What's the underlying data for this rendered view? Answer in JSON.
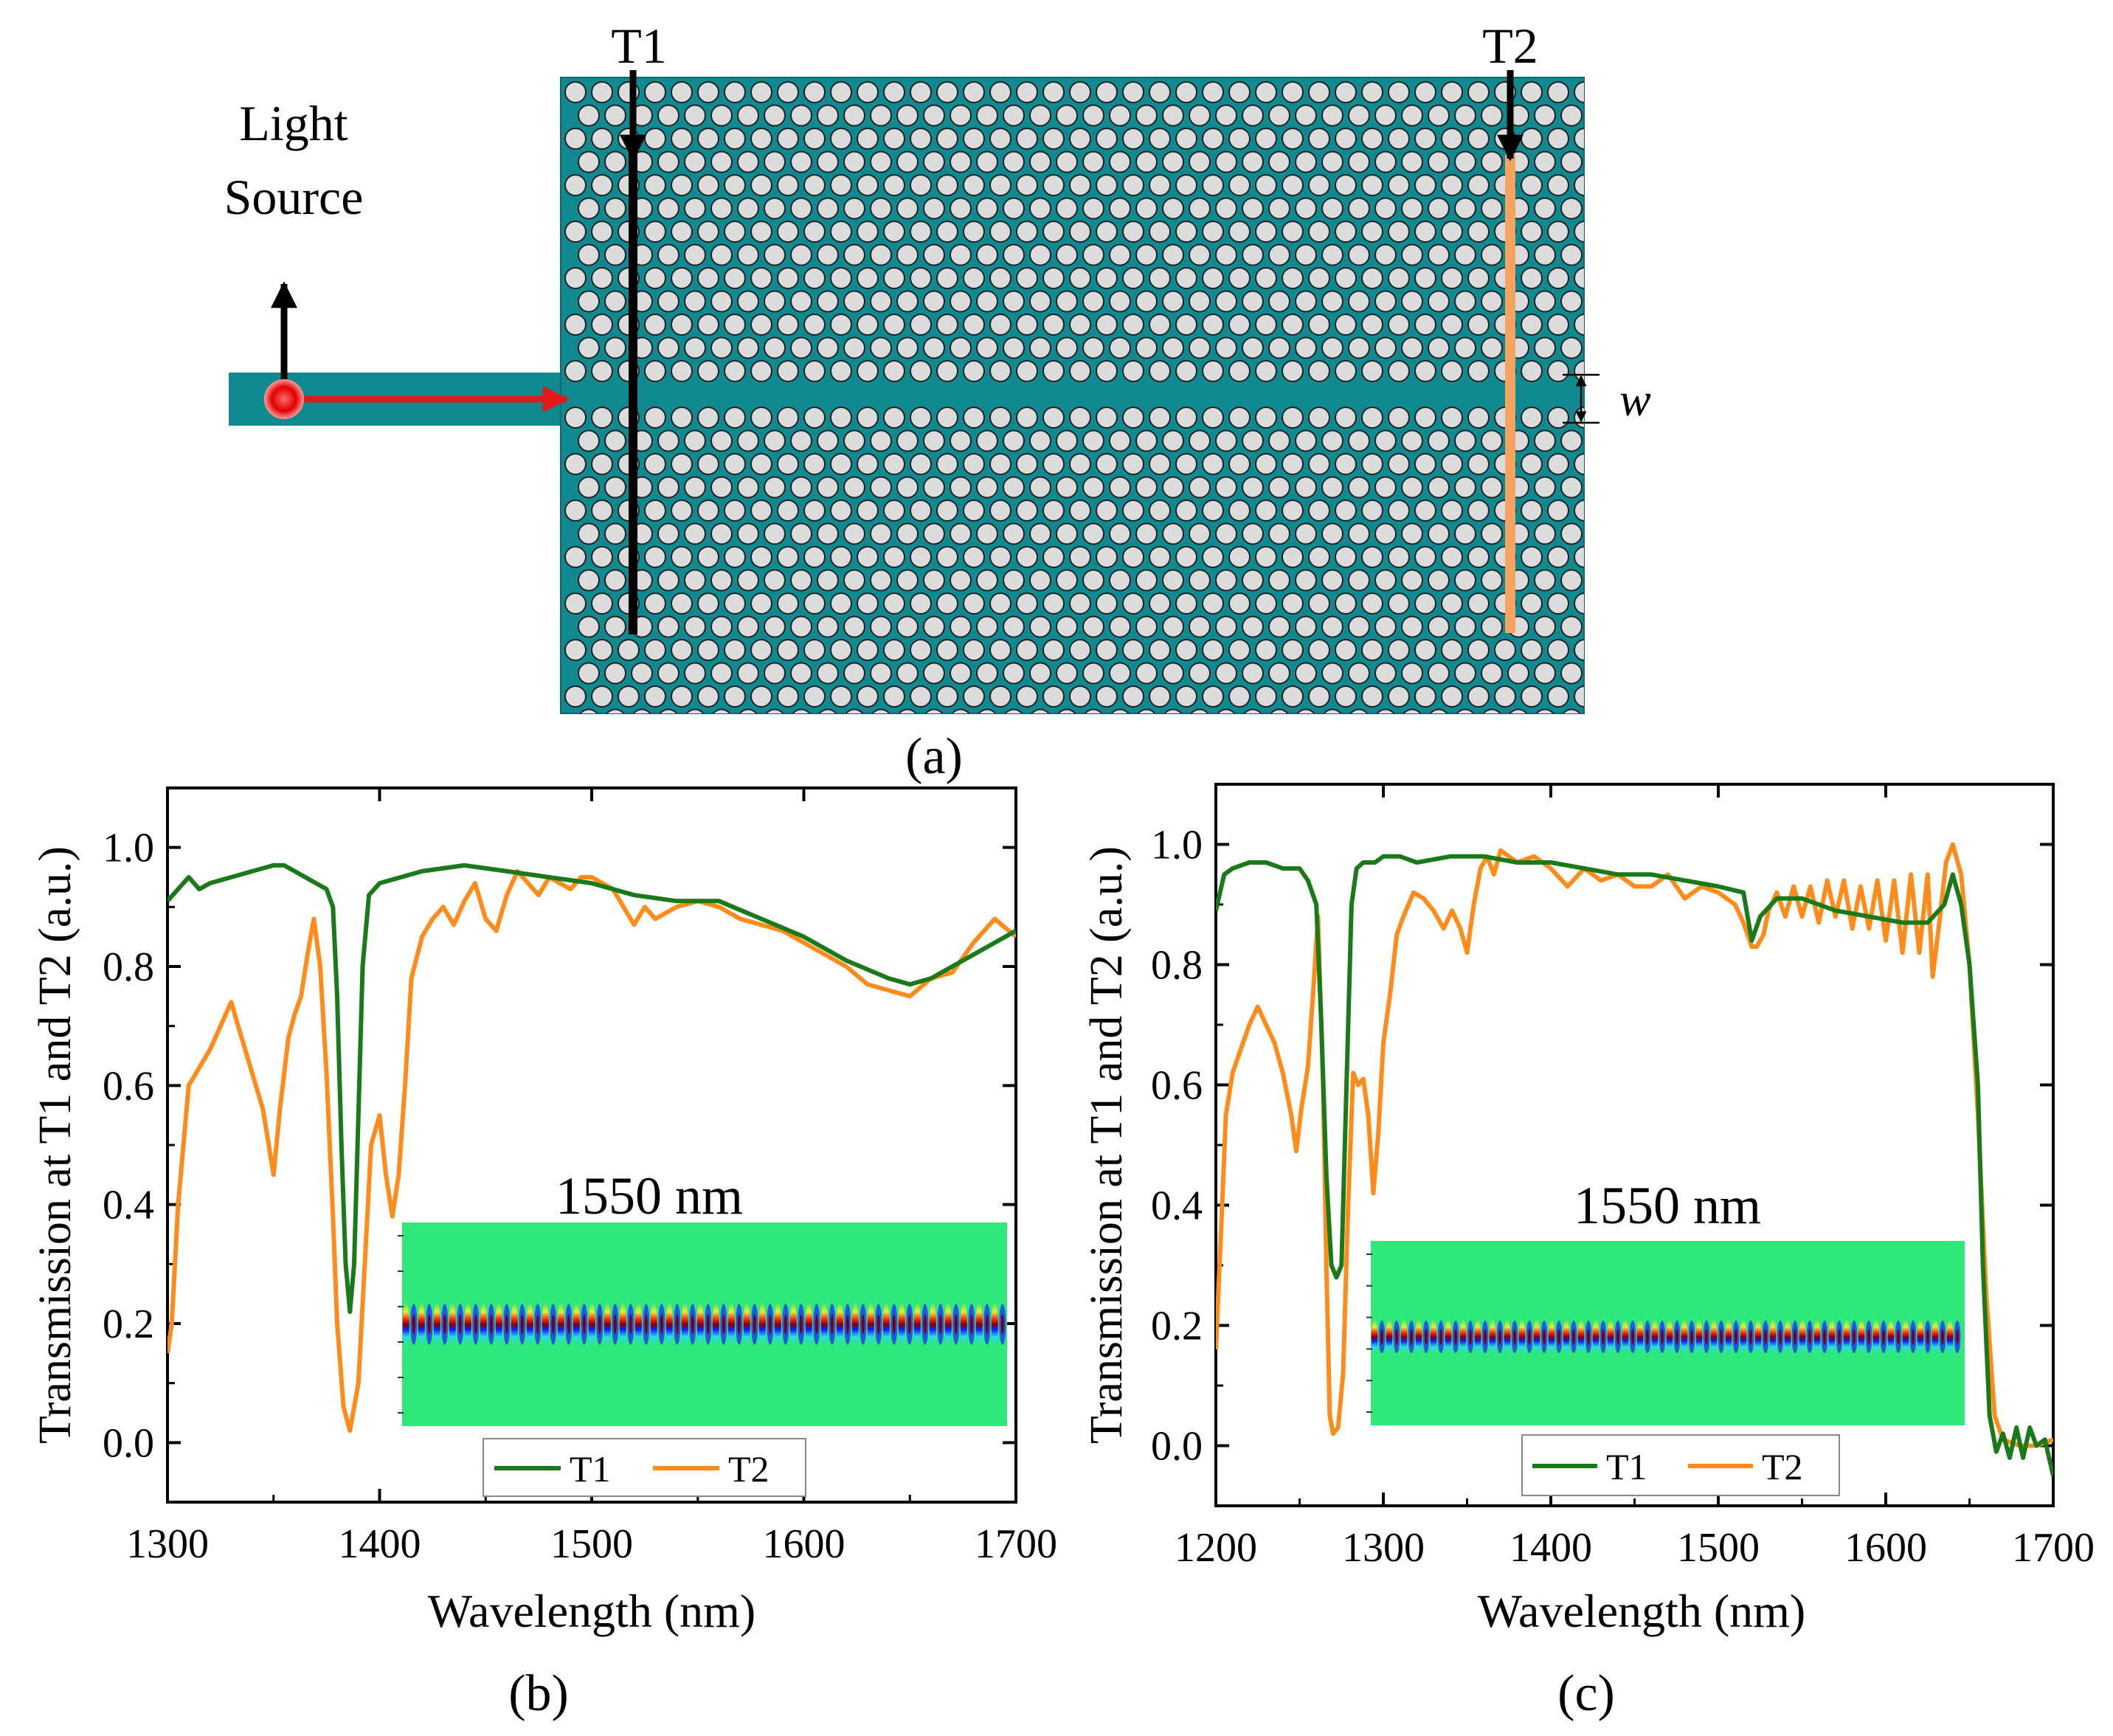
{
  "panel_a": {
    "label": "(a)",
    "source_label_line1": "Light",
    "source_label_line2": "Source",
    "monitor_1": "T1",
    "monitor_2": "T2",
    "width_symbol": "w",
    "colors": {
      "slab": "#108a90",
      "hole": "#dcdcdc",
      "hole_edge": "#222222",
      "source": "#ee1111",
      "arrow_red": "#e31a1a",
      "t1_line": "#000000",
      "t2_line": "#f4a460"
    }
  },
  "chart_data": [
    {
      "panel": "(b)",
      "type": "line",
      "xlabel": "Wavelength (nm)",
      "ylabel": "Transmission at T1 and T2 (a.u.)",
      "xlim": [
        1300,
        1700
      ],
      "ylim": [
        -0.1,
        1.1
      ],
      "xticks": [
        "1300",
        "1400",
        "1500",
        "1600",
        "1700"
      ],
      "yticks": [
        "0.0",
        "0.2",
        "0.4",
        "0.6",
        "0.8",
        "1.0"
      ],
      "inset_title": "1550 nm",
      "legend": [
        "T1",
        "T2"
      ],
      "colors": {
        "T1": "#1a7a1a",
        "T2": "#ff8c1a"
      },
      "series": [
        {
          "name": "T1",
          "x": [
            1300,
            1305,
            1310,
            1315,
            1320,
            1330,
            1340,
            1350,
            1355,
            1360,
            1365,
            1370,
            1375,
            1378,
            1380,
            1382,
            1384,
            1386,
            1388,
            1390,
            1392,
            1395,
            1400,
            1410,
            1420,
            1440,
            1460,
            1480,
            1500,
            1520,
            1540,
            1560,
            1580,
            1600,
            1620,
            1640,
            1650,
            1660,
            1680,
            1700
          ],
          "values": [
            0.91,
            0.93,
            0.95,
            0.93,
            0.94,
            0.95,
            0.96,
            0.97,
            0.97,
            0.96,
            0.95,
            0.94,
            0.93,
            0.9,
            0.75,
            0.5,
            0.3,
            0.22,
            0.3,
            0.55,
            0.8,
            0.92,
            0.94,
            0.95,
            0.96,
            0.97,
            0.96,
            0.95,
            0.94,
            0.92,
            0.91,
            0.91,
            0.88,
            0.85,
            0.81,
            0.78,
            0.77,
            0.78,
            0.82,
            0.86
          ]
        },
        {
          "name": "T2",
          "x": [
            1300,
            1302,
            1305,
            1310,
            1315,
            1320,
            1325,
            1330,
            1335,
            1340,
            1345,
            1350,
            1353,
            1357,
            1360,
            1363,
            1366,
            1369,
            1372,
            1375,
            1378,
            1380,
            1383,
            1386,
            1390,
            1393,
            1396,
            1400,
            1403,
            1406,
            1409,
            1412,
            1415,
            1420,
            1425,
            1430,
            1435,
            1440,
            1445,
            1450,
            1455,
            1460,
            1465,
            1470,
            1475,
            1480,
            1485,
            1490,
            1495,
            1500,
            1510,
            1520,
            1525,
            1530,
            1540,
            1550,
            1560,
            1570,
            1580,
            1590,
            1600,
            1610,
            1620,
            1630,
            1640,
            1650,
            1660,
            1670,
            1680,
            1690,
            1700
          ],
          "values": [
            0.15,
            0.2,
            0.4,
            0.6,
            0.63,
            0.66,
            0.7,
            0.74,
            0.68,
            0.62,
            0.56,
            0.45,
            0.56,
            0.68,
            0.72,
            0.75,
            0.82,
            0.88,
            0.8,
            0.62,
            0.38,
            0.2,
            0.06,
            0.02,
            0.1,
            0.3,
            0.5,
            0.55,
            0.45,
            0.38,
            0.45,
            0.6,
            0.78,
            0.85,
            0.88,
            0.9,
            0.87,
            0.91,
            0.94,
            0.88,
            0.86,
            0.92,
            0.96,
            0.94,
            0.92,
            0.95,
            0.94,
            0.93,
            0.95,
            0.95,
            0.93,
            0.87,
            0.9,
            0.88,
            0.9,
            0.91,
            0.9,
            0.88,
            0.87,
            0.86,
            0.84,
            0.82,
            0.8,
            0.77,
            0.76,
            0.75,
            0.78,
            0.79,
            0.84,
            0.88,
            0.85
          ]
        }
      ]
    },
    {
      "panel": "(c)",
      "type": "line",
      "xlabel": "Wavelength (nm)",
      "ylabel": "Transmission at T1 and T2 (a.u.)",
      "xlim": [
        1200,
        1700
      ],
      "ylim": [
        -0.1,
        1.1
      ],
      "xticks": [
        "1200",
        "1300",
        "1400",
        "1500",
        "1600",
        "1700"
      ],
      "yticks": [
        "0.0",
        "0.2",
        "0.4",
        "0.6",
        "0.8",
        "1.0"
      ],
      "inset_title": "1550 nm",
      "legend": [
        "T1",
        "T2"
      ],
      "colors": {
        "T1": "#1a7a1a",
        "T2": "#ff8c1a"
      },
      "series": [
        {
          "name": "T1",
          "x": [
            1200,
            1205,
            1210,
            1220,
            1230,
            1240,
            1250,
            1255,
            1260,
            1263,
            1266,
            1269,
            1272,
            1275,
            1278,
            1281,
            1284,
            1288,
            1295,
            1300,
            1310,
            1320,
            1340,
            1360,
            1380,
            1400,
            1420,
            1440,
            1460,
            1480,
            1500,
            1515,
            1520,
            1525,
            1535,
            1550,
            1570,
            1590,
            1610,
            1625,
            1635,
            1640,
            1645,
            1650,
            1655,
            1658,
            1662,
            1666,
            1670,
            1674,
            1678,
            1682,
            1686,
            1690,
            1695,
            1700
          ],
          "values": [
            0.89,
            0.95,
            0.96,
            0.97,
            0.97,
            0.96,
            0.96,
            0.94,
            0.9,
            0.7,
            0.45,
            0.3,
            0.28,
            0.3,
            0.6,
            0.9,
            0.96,
            0.97,
            0.97,
            0.98,
            0.98,
            0.97,
            0.98,
            0.98,
            0.97,
            0.97,
            0.96,
            0.95,
            0.95,
            0.94,
            0.93,
            0.92,
            0.84,
            0.88,
            0.91,
            0.91,
            0.89,
            0.88,
            0.87,
            0.87,
            0.9,
            0.95,
            0.9,
            0.8,
            0.6,
            0.3,
            0.05,
            -0.01,
            0.02,
            -0.02,
            0.03,
            -0.02,
            0.03,
            0.0,
            0.01,
            -0.05
          ]
        },
        {
          "name": "T2",
          "x": [
            1200,
            1203,
            1206,
            1210,
            1215,
            1220,
            1225,
            1230,
            1235,
            1240,
            1245,
            1248,
            1251,
            1255,
            1258,
            1261,
            1264,
            1266,
            1268,
            1270,
            1273,
            1276,
            1279,
            1282,
            1285,
            1288,
            1291,
            1294,
            1297,
            1300,
            1304,
            1308,
            1312,
            1318,
            1324,
            1330,
            1336,
            1341,
            1346,
            1350,
            1354,
            1358,
            1362,
            1366,
            1370,
            1380,
            1390,
            1400,
            1410,
            1420,
            1430,
            1440,
            1450,
            1460,
            1470,
            1480,
            1490,
            1500,
            1510,
            1515,
            1520,
            1523,
            1527,
            1530,
            1535,
            1540,
            1545,
            1550,
            1555,
            1560,
            1565,
            1570,
            1575,
            1580,
            1585,
            1590,
            1595,
            1600,
            1605,
            1610,
            1615,
            1620,
            1625,
            1628,
            1632,
            1636,
            1640,
            1645,
            1650,
            1655,
            1660,
            1665,
            1670,
            1680,
            1690,
            1700
          ],
          "values": [
            0.16,
            0.35,
            0.55,
            0.62,
            0.66,
            0.7,
            0.73,
            0.7,
            0.67,
            0.62,
            0.55,
            0.49,
            0.56,
            0.63,
            0.75,
            0.88,
            0.6,
            0.3,
            0.05,
            0.02,
            0.03,
            0.12,
            0.4,
            0.62,
            0.6,
            0.61,
            0.55,
            0.42,
            0.52,
            0.67,
            0.75,
            0.85,
            0.88,
            0.92,
            0.91,
            0.89,
            0.86,
            0.89,
            0.86,
            0.82,
            0.9,
            0.96,
            0.98,
            0.95,
            0.99,
            0.97,
            0.98,
            0.96,
            0.93,
            0.96,
            0.94,
            0.95,
            0.93,
            0.93,
            0.95,
            0.91,
            0.93,
            0.92,
            0.9,
            0.87,
            0.83,
            0.83,
            0.85,
            0.89,
            0.92,
            0.88,
            0.93,
            0.88,
            0.93,
            0.87,
            0.94,
            0.88,
            0.94,
            0.86,
            0.93,
            0.86,
            0.94,
            0.84,
            0.94,
            0.82,
            0.95,
            0.82,
            0.95,
            0.78,
            0.87,
            0.97,
            1.0,
            0.95,
            0.8,
            0.55,
            0.25,
            0.05,
            0.01,
            0.0,
            0.0,
            0.01
          ]
        }
      ]
    }
  ]
}
